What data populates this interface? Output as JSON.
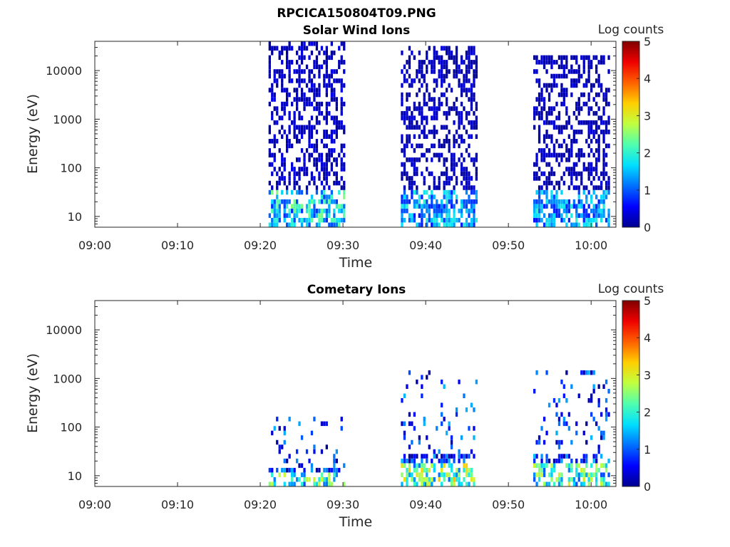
{
  "figure_title": "RPCICA150804T09.PNG",
  "colormap_stops": [
    "#00008f",
    "#0000ff",
    "#0070ff",
    "#00dfff",
    "#50ffaf",
    "#c0ff40",
    "#ffcf00",
    "#ff6000",
    "#ef0000",
    "#800000"
  ],
  "chart_data": [
    {
      "type": "heatmap",
      "title": "Solar Wind Ions",
      "xlabel": "Time",
      "ylabel": "Energy (eV)",
      "yscale": "log",
      "ylim": [
        6,
        40000
      ],
      "xlim": [
        "09:00",
        "10:03"
      ],
      "x_ticks": [
        "09:00",
        "09:10",
        "09:20",
        "09:30",
        "09:40",
        "09:50",
        "10:00"
      ],
      "y_ticks": [
        "10",
        "100",
        "1000",
        "10000"
      ],
      "colorbar": {
        "label": "Log counts",
        "range": [
          0,
          5
        ],
        "ticks": [
          "0",
          "1",
          "2",
          "3",
          "4",
          "5"
        ]
      },
      "grid": false,
      "bursts": [
        {
          "start": "09:21",
          "end": "09:30",
          "emin": 6,
          "emax": 35000,
          "level": 0.5,
          "low_energy_peak": 2.5
        },
        {
          "start": "09:37",
          "end": "09:46",
          "emin": 6,
          "emax": 30000,
          "level": 0.4,
          "low_energy_peak": 2.0
        },
        {
          "start": "09:53",
          "end": "10:02",
          "emin": 6,
          "emax": 20000,
          "level": 0.4,
          "low_energy_peak": 2.0
        }
      ]
    },
    {
      "type": "heatmap",
      "title": "Cometary Ions",
      "xlabel": "Time",
      "ylabel": "Energy (eV)",
      "yscale": "log",
      "ylim": [
        6,
        40000
      ],
      "xlim": [
        "09:00",
        "10:03"
      ],
      "x_ticks": [
        "09:00",
        "09:10",
        "09:20",
        "09:30",
        "09:40",
        "09:50",
        "10:00"
      ],
      "y_ticks": [
        "10",
        "100",
        "1000",
        "10000"
      ],
      "colorbar": {
        "label": "Log counts",
        "range": [
          0,
          5
        ],
        "ticks": [
          "0",
          "1",
          "2",
          "3",
          "4",
          "5"
        ]
      },
      "grid": false,
      "bursts": [
        {
          "start": "09:21",
          "end": "09:30",
          "emin": 6,
          "emax": 150,
          "level": 1.5,
          "low_energy_peak": 3.0
        },
        {
          "start": "09:37",
          "end": "09:46",
          "emin": 6,
          "emax": 1400,
          "level": 1.5,
          "low_energy_peak": 3.5
        },
        {
          "start": "09:53",
          "end": "10:02",
          "emin": 6,
          "emax": 1200,
          "level": 1.5,
          "low_energy_peak": 3.0
        }
      ]
    }
  ]
}
